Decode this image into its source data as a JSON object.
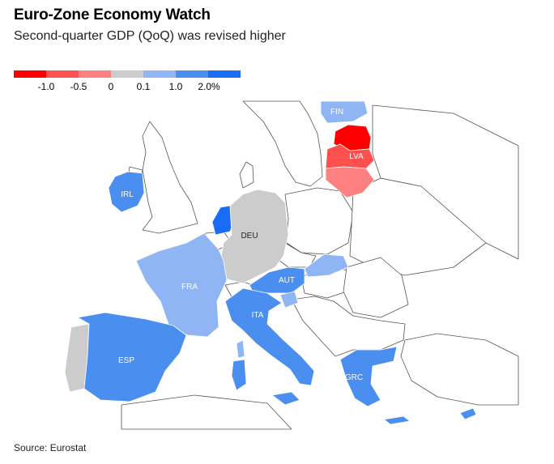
{
  "title": "Euro-Zone Economy Watch",
  "subtitle": "Second-quarter GDP (QoQ) was revised higher",
  "legend": {
    "colors": [
      "#ff0000",
      "#ff5050",
      "#ff8080",
      "#cccccc",
      "#8fb5f5",
      "#4a8ef0",
      "#1a6cf5"
    ],
    "ticks": [
      "-1.0",
      "-0.5",
      "0",
      "0.1",
      "1.0",
      "2.0%"
    ]
  },
  "countries": {
    "FIN": {
      "label": "FIN",
      "bin": 4
    },
    "LVA": {
      "label": "LVA",
      "bin": 1
    },
    "EST": {
      "label": "",
      "bin": 0
    },
    "LTU": {
      "label": "",
      "bin": 2
    },
    "IRL": {
      "label": "IRL",
      "bin": 5
    },
    "NLD": {
      "label": "",
      "bin": 6
    },
    "DEU": {
      "label": "DEU",
      "bin": 3
    },
    "FRA": {
      "label": "FRA",
      "bin": 4
    },
    "AUT": {
      "label": "AUT",
      "bin": 5
    },
    "SVK": {
      "label": "",
      "bin": 4
    },
    "SVN": {
      "label": "",
      "bin": 4
    },
    "ITA": {
      "label": "ITA",
      "bin": 5
    },
    "ESP": {
      "label": "ESP",
      "bin": 5
    },
    "PRT": {
      "label": "",
      "bin": 3
    },
    "GRC": {
      "label": "GRC",
      "bin": 5
    },
    "CYP": {
      "label": "",
      "bin": 5
    }
  },
  "source": "Source: Eurostat"
}
